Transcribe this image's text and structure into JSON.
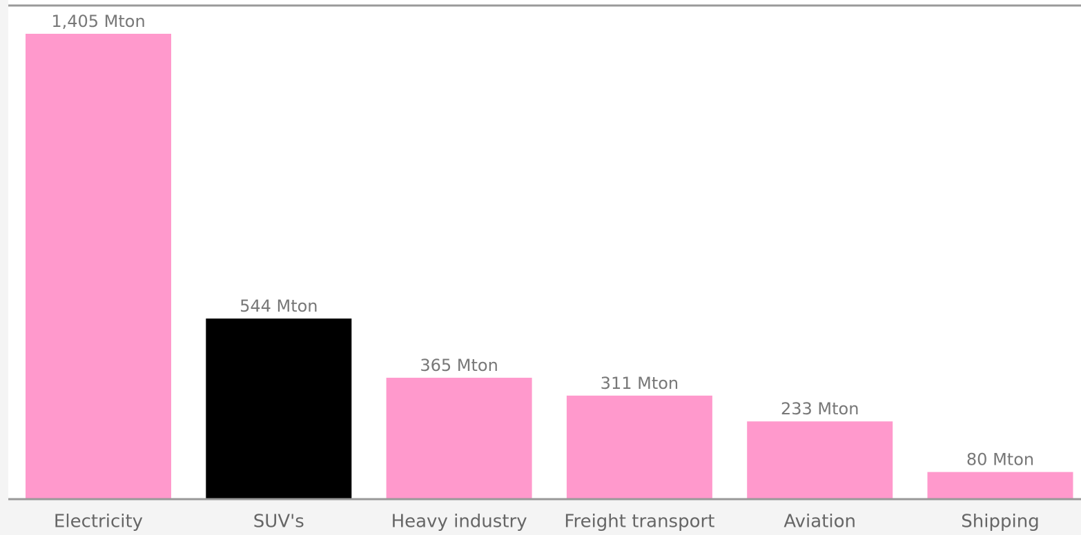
{
  "chart_data": {
    "type": "bar",
    "categories": [
      "Electricity",
      "SUV's",
      "Heavy industry",
      "Freight transport",
      "Aviation",
      "Shipping"
    ],
    "values": [
      1405,
      544,
      365,
      311,
      233,
      80
    ],
    "value_labels": [
      "1,405 Mton",
      "544 Mton",
      "365 Mton",
      "311 Mton",
      "233 Mton",
      "80 Mton"
    ],
    "colors": [
      "#ff99cc",
      "#000000",
      "#ff99cc",
      "#ff99cc",
      "#ff99cc",
      "#ff99cc"
    ]
  }
}
